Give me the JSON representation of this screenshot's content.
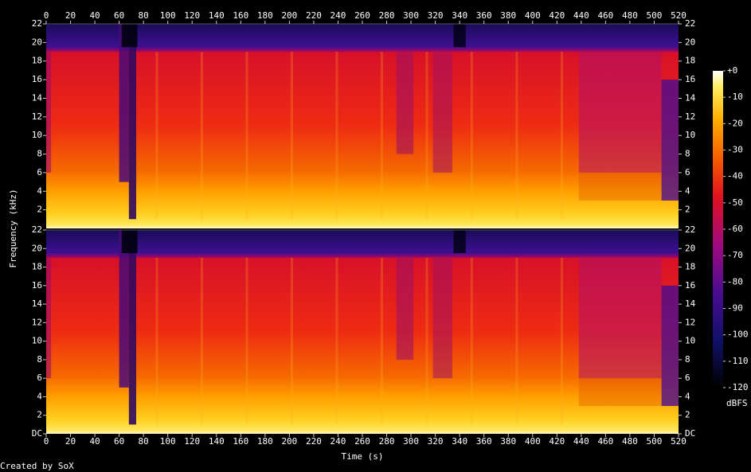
{
  "chart_data": {
    "type": "spectrogram",
    "x_label": "Time (s)",
    "y_label": "Frequency (kHz)",
    "footer": "Created by SoX",
    "xlim": [
      0,
      520
    ],
    "xticks": [
      0,
      20,
      40,
      60,
      80,
      100,
      120,
      140,
      160,
      180,
      200,
      220,
      240,
      260,
      280,
      300,
      320,
      340,
      360,
      380,
      400,
      420,
      440,
      460,
      480,
      500,
      520
    ],
    "channels": [
      {
        "ylim": [
          0,
          22
        ],
        "yticks": [
          2,
          4,
          6,
          8,
          10,
          12,
          14,
          16,
          18,
          20,
          22
        ]
      },
      {
        "ylim": [
          0,
          22
        ],
        "yticks": [
          {
            "value": 0,
            "label": "DC"
          },
          2,
          4,
          6,
          8,
          10,
          12,
          14,
          16,
          18,
          20,
          22
        ]
      }
    ],
    "colorbar": {
      "label": "dBFS",
      "lim": [
        -120,
        0
      ],
      "ticks": [
        {
          "value": 0,
          "label": "+0"
        },
        -10,
        -20,
        -30,
        -40,
        -50,
        -60,
        -70,
        -80,
        -90,
        -100,
        -110,
        -120
      ]
    }
  }
}
